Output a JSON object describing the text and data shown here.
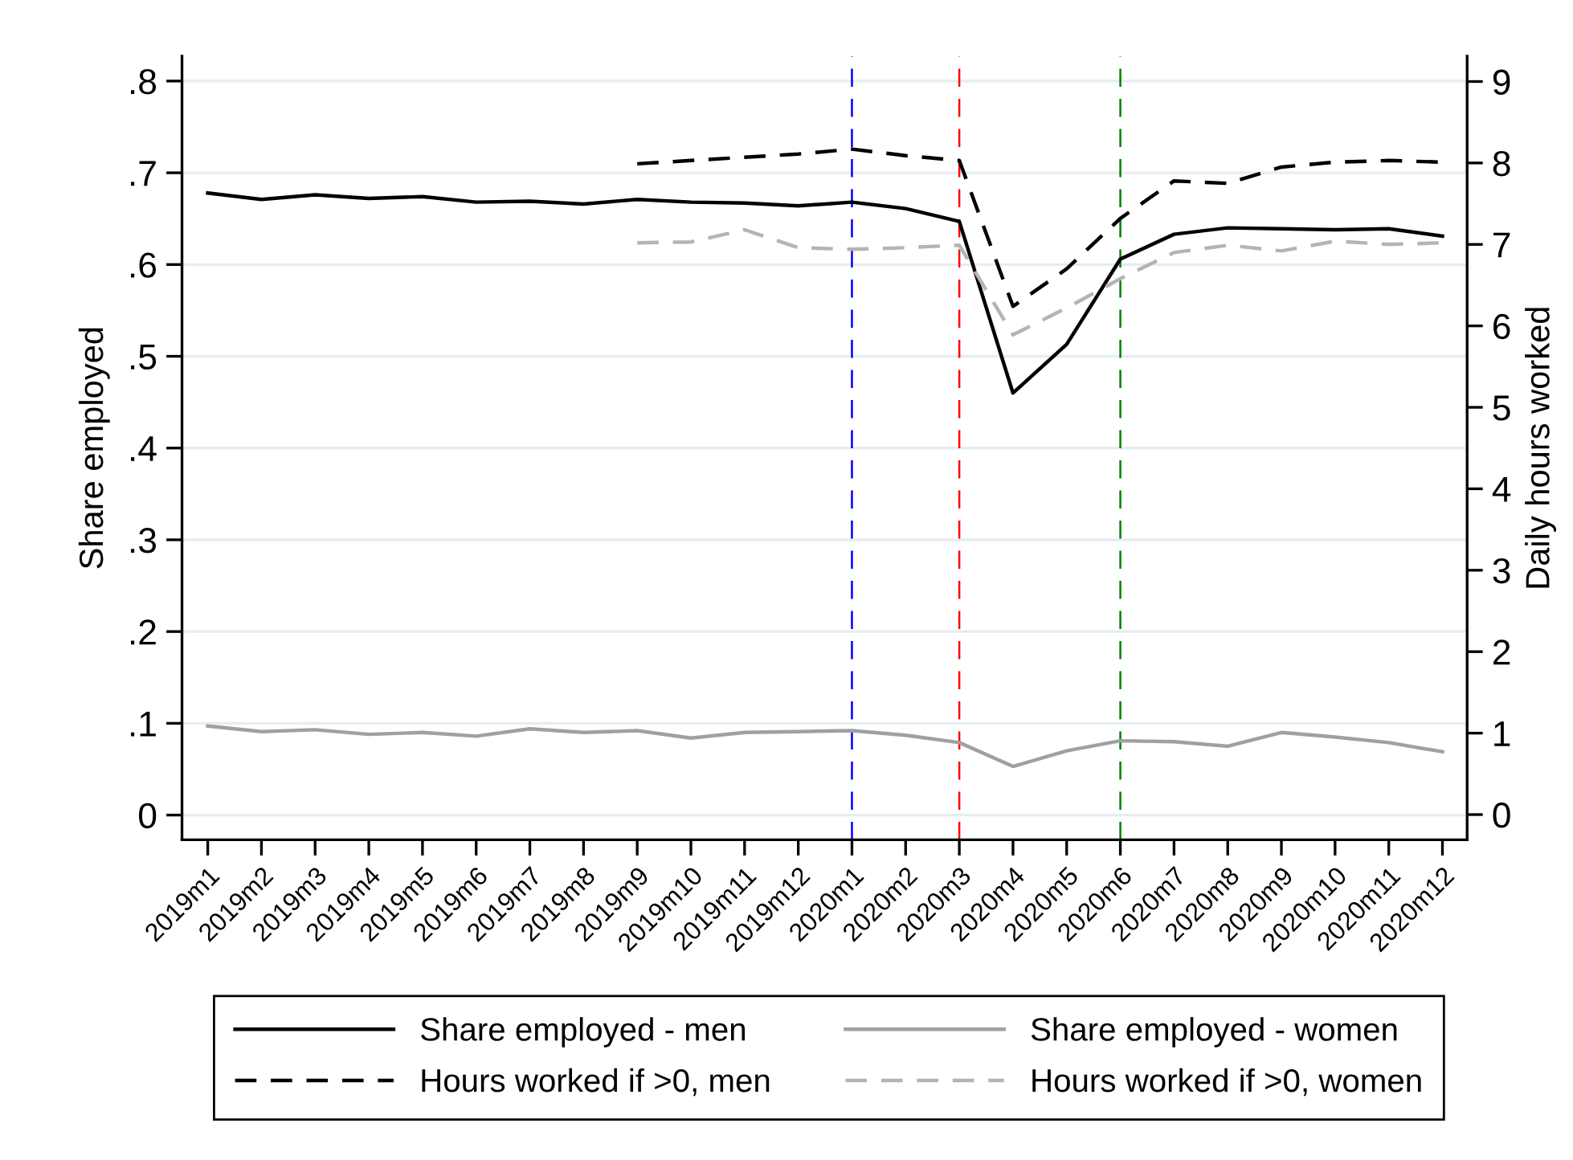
{
  "chart_data": {
    "type": "line",
    "categories": [
      "2019m1",
      "2019m2",
      "2019m3",
      "2019m4",
      "2019m5",
      "2019m6",
      "2019m7",
      "2019m8",
      "2019m9",
      "2019m10",
      "2019m11",
      "2019m12",
      "2020m1",
      "2020m2",
      "2020m3",
      "2020m4",
      "2020m5",
      "2020m6",
      "2020m7",
      "2020m8",
      "2020m9",
      "2020m10",
      "2020m11",
      "2020m12"
    ],
    "ylabel": "Share employed",
    "y2label": "Daily hours worked",
    "ylim": [
      -0.027,
      0.827
    ],
    "yticks": [
      0,
      {
        "value": 0.1,
        "label": ".1"
      },
      {
        "value": 0.2,
        "label": ".2"
      },
      {
        "value": 0.3,
        "label": ".3"
      },
      {
        "value": 0.4,
        "label": ".4"
      },
      {
        "value": 0.5,
        "label": ".5"
      },
      {
        "value": 0.6,
        "label": ".6"
      },
      {
        "value": 0.7,
        "label": ".7"
      },
      {
        "value": 0.8,
        "label": ".8"
      }
    ],
    "y2lim": [
      -0.31,
      9.31
    ],
    "y2ticks": [
      0,
      1,
      2,
      3,
      4,
      5,
      6,
      7,
      8,
      9
    ],
    "grid": "y",
    "legend": "bottom",
    "ref_lines": [
      {
        "axis": "x",
        "value": "2020m1",
        "color": "#0000ff",
        "line_style": "dashed"
      },
      {
        "axis": "x",
        "value": "2020m3",
        "color": "#ff0000",
        "line_style": "dashed"
      },
      {
        "axis": "x",
        "value": "2020m6",
        "color": "#008000",
        "line_style": "dashed"
      }
    ],
    "series": [
      {
        "name": "Share employed - men",
        "color": "#000000",
        "line_style": "solid",
        "values": [
          0.678,
          0.671,
          0.676,
          0.672,
          0.674,
          0.668,
          0.669,
          0.666,
          0.671,
          0.668,
          0.667,
          0.664,
          0.668,
          0.661,
          0.647,
          0.46,
          0.513,
          0.606,
          0.633,
          0.64,
          0.639,
          0.638,
          0.639,
          0.631
        ]
      },
      {
        "name": "Share employed - women",
        "color": "#a0a0a0",
        "line_style": "solid",
        "values": [
          0.097,
          0.091,
          0.093,
          0.088,
          0.09,
          0.086,
          0.094,
          0.09,
          0.092,
          0.084,
          0.09,
          0.091,
          0.092,
          0.087,
          0.079,
          0.053,
          0.07,
          0.081,
          0.08,
          0.075,
          0.09,
          0.085,
          0.079,
          0.069
        ]
      },
      {
        "name": "Hours worked if >0, men",
        "color": "#000000",
        "line_style": "dashed",
        "axis": "y2",
        "values": [
          null,
          null,
          null,
          null,
          null,
          null,
          null,
          null,
          7.99,
          8.03,
          8.07,
          8.11,
          8.17,
          8.09,
          8.03,
          6.24,
          6.7,
          7.32,
          7.78,
          7.75,
          7.95,
          8.01,
          8.03,
          8.01
        ]
      },
      {
        "name": "Hours worked if >0, women",
        "color": "#b4b4b4",
        "line_style": "dashed",
        "axis": "y2",
        "values": [
          null,
          null,
          null,
          null,
          null,
          null,
          null,
          null,
          7.02,
          7.03,
          7.18,
          6.96,
          6.94,
          6.96,
          6.99,
          5.89,
          6.22,
          6.58,
          6.9,
          6.99,
          6.92,
          7.04,
          7.0,
          7.02
        ]
      }
    ]
  }
}
